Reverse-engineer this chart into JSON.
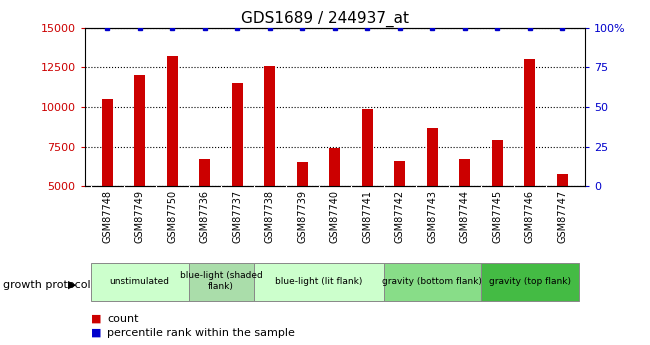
{
  "title": "GDS1689 / 244937_at",
  "samples": [
    "GSM87748",
    "GSM87749",
    "GSM87750",
    "GSM87736",
    "GSM87737",
    "GSM87738",
    "GSM87739",
    "GSM87740",
    "GSM87741",
    "GSM87742",
    "GSM87743",
    "GSM87744",
    "GSM87745",
    "GSM87746",
    "GSM87747"
  ],
  "counts": [
    10500,
    12000,
    13200,
    6700,
    11500,
    12600,
    6500,
    7400,
    9900,
    6600,
    8700,
    6700,
    7900,
    13000,
    5800
  ],
  "percentile_ranks": [
    100,
    100,
    100,
    100,
    100,
    100,
    100,
    100,
    100,
    100,
    100,
    100,
    100,
    100,
    100
  ],
  "ylim_left": [
    5000,
    15000
  ],
  "ylim_right": [
    0,
    100
  ],
  "yticks_left": [
    5000,
    7500,
    10000,
    12500,
    15000
  ],
  "yticks_right": [
    0,
    25,
    50,
    75,
    100
  ],
  "bar_color": "#cc0000",
  "dot_color": "#0000cc",
  "groups": [
    {
      "label": "unstimulated",
      "start": 0,
      "end": 3,
      "color": "#ccffcc"
    },
    {
      "label": "blue-light (shaded\nflank)",
      "start": 3,
      "end": 5,
      "color": "#aaddaa"
    },
    {
      "label": "blue-light (lit flank)",
      "start": 5,
      "end": 9,
      "color": "#ccffcc"
    },
    {
      "label": "gravity (bottom flank)",
      "start": 9,
      "end": 12,
      "color": "#88dd88"
    },
    {
      "label": "gravity (top flank)",
      "start": 12,
      "end": 15,
      "color": "#44bb44"
    }
  ],
  "growth_protocol_label": "growth protocol",
  "legend_count_label": "count",
  "legend_percentile_label": "percentile rank within the sample",
  "background_color": "#ffffff",
  "plot_bg_color": "#ffffff",
  "xtick_bg_color": "#dddddd",
  "grid_color": "#000000",
  "tick_label_color_left": "#cc0000",
  "tick_label_color_right": "#0000cc"
}
